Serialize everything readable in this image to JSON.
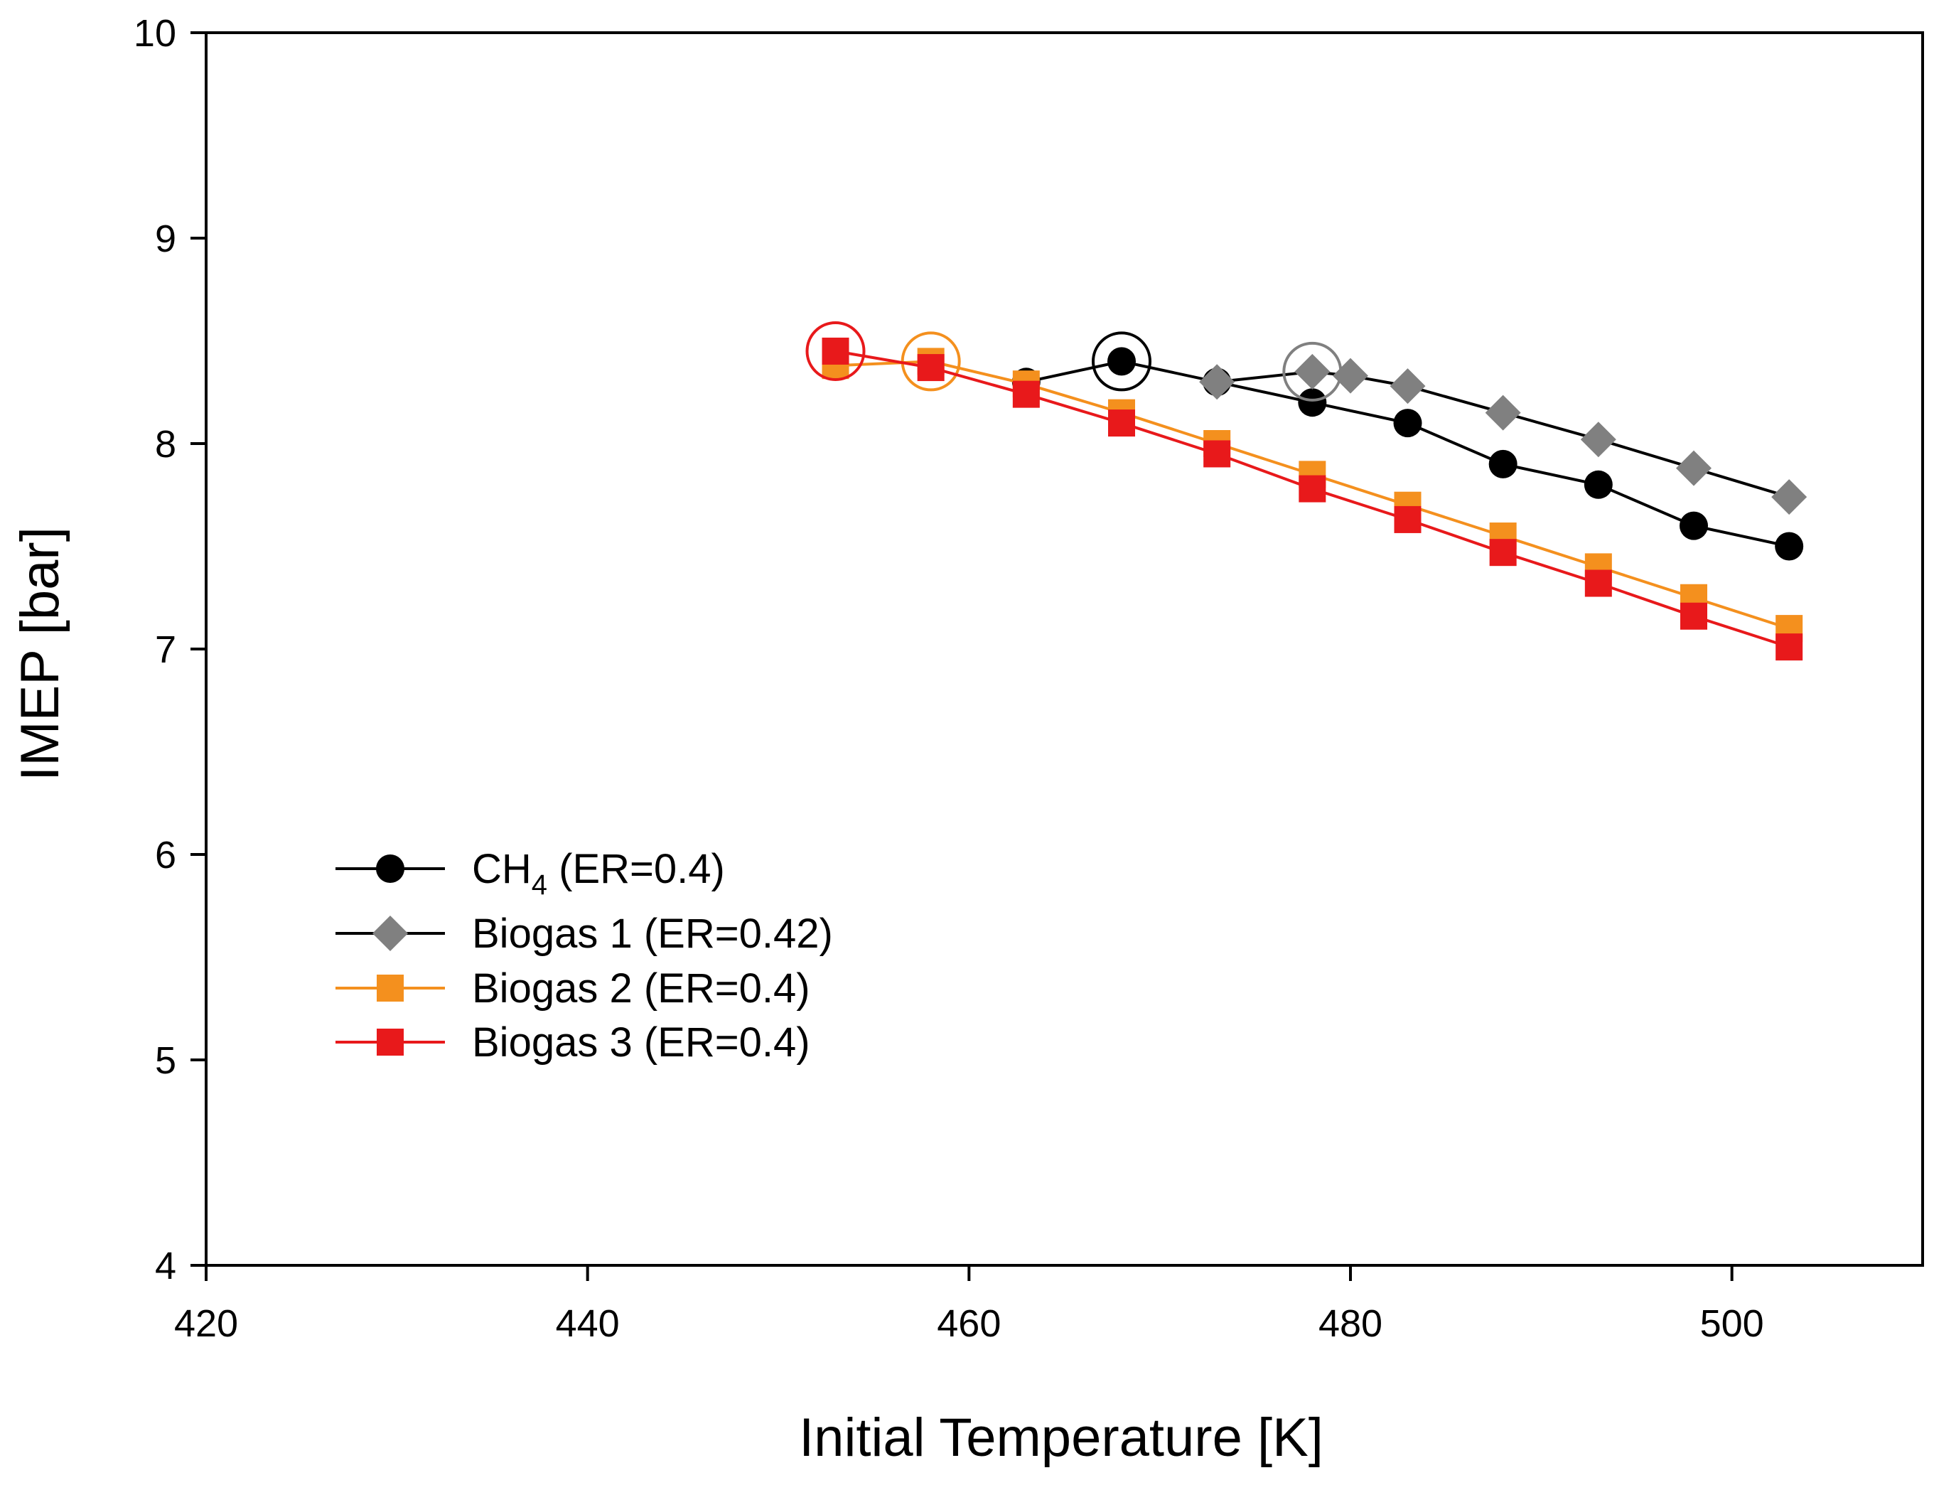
{
  "chart_data": {
    "type": "line",
    "title": "",
    "xlabel": "Initial Temperature [K]",
    "ylabel": "IMEP [bar]",
    "xlim": [
      420,
      510
    ],
    "ylim": [
      4,
      10
    ],
    "x_ticks": [
      420,
      440,
      460,
      480,
      500
    ],
    "y_ticks": [
      4,
      5,
      6,
      7,
      8,
      9,
      10
    ],
    "grid": false,
    "legend_position": "center-left",
    "series": [
      {
        "name": "CH4 (ER=0.4)",
        "label_main": "CH",
        "label_sub": "4",
        "label_rest": " (ER=0.4)",
        "marker": "circle",
        "line_color": "#000000",
        "marker_color": "#000000",
        "x": [
          463,
          468,
          473,
          478,
          483,
          488,
          493,
          498,
          503
        ],
        "y": [
          8.3,
          8.4,
          8.3,
          8.2,
          8.1,
          7.9,
          7.8,
          7.6,
          7.5
        ],
        "highlight_x": 468,
        "highlight_y": 8.4
      },
      {
        "name": "Biogas 1 (ER=0.42)",
        "label_main": "Biogas 1 (ER=0.42)",
        "marker": "diamond",
        "line_color": "#000000",
        "marker_color": "#808080",
        "x": [
          473,
          478,
          480,
          483,
          488,
          493,
          498,
          503
        ],
        "y": [
          8.3,
          8.35,
          8.33,
          8.28,
          8.15,
          8.02,
          7.88,
          7.74
        ],
        "highlight_x": 478,
        "highlight_y": 8.35
      },
      {
        "name": "Biogas 2 (ER=0.4)",
        "label_main": "Biogas 2 (ER=0.4)",
        "marker": "square",
        "line_color": "#f4901e",
        "marker_color": "#f4901e",
        "x": [
          453,
          458,
          463,
          468,
          473,
          478,
          483,
          488,
          493,
          498,
          503
        ],
        "y": [
          8.38,
          8.4,
          8.29,
          8.15,
          8.0,
          7.85,
          7.7,
          7.55,
          7.4,
          7.25,
          7.1
        ],
        "highlight_x": 458,
        "highlight_y": 8.4
      },
      {
        "name": "Biogas 3 (ER=0.4)",
        "label_main": "Biogas 3 (ER=0.4)",
        "marker": "square",
        "line_color": "#e8191b",
        "marker_color": "#e8191b",
        "x": [
          453,
          458,
          463,
          468,
          473,
          478,
          483,
          488,
          493,
          498,
          503
        ],
        "y": [
          8.45,
          8.37,
          8.24,
          8.1,
          7.95,
          7.78,
          7.63,
          7.47,
          7.32,
          7.16,
          7.01
        ],
        "highlight_x": 453,
        "highlight_y": 8.45
      }
    ]
  }
}
